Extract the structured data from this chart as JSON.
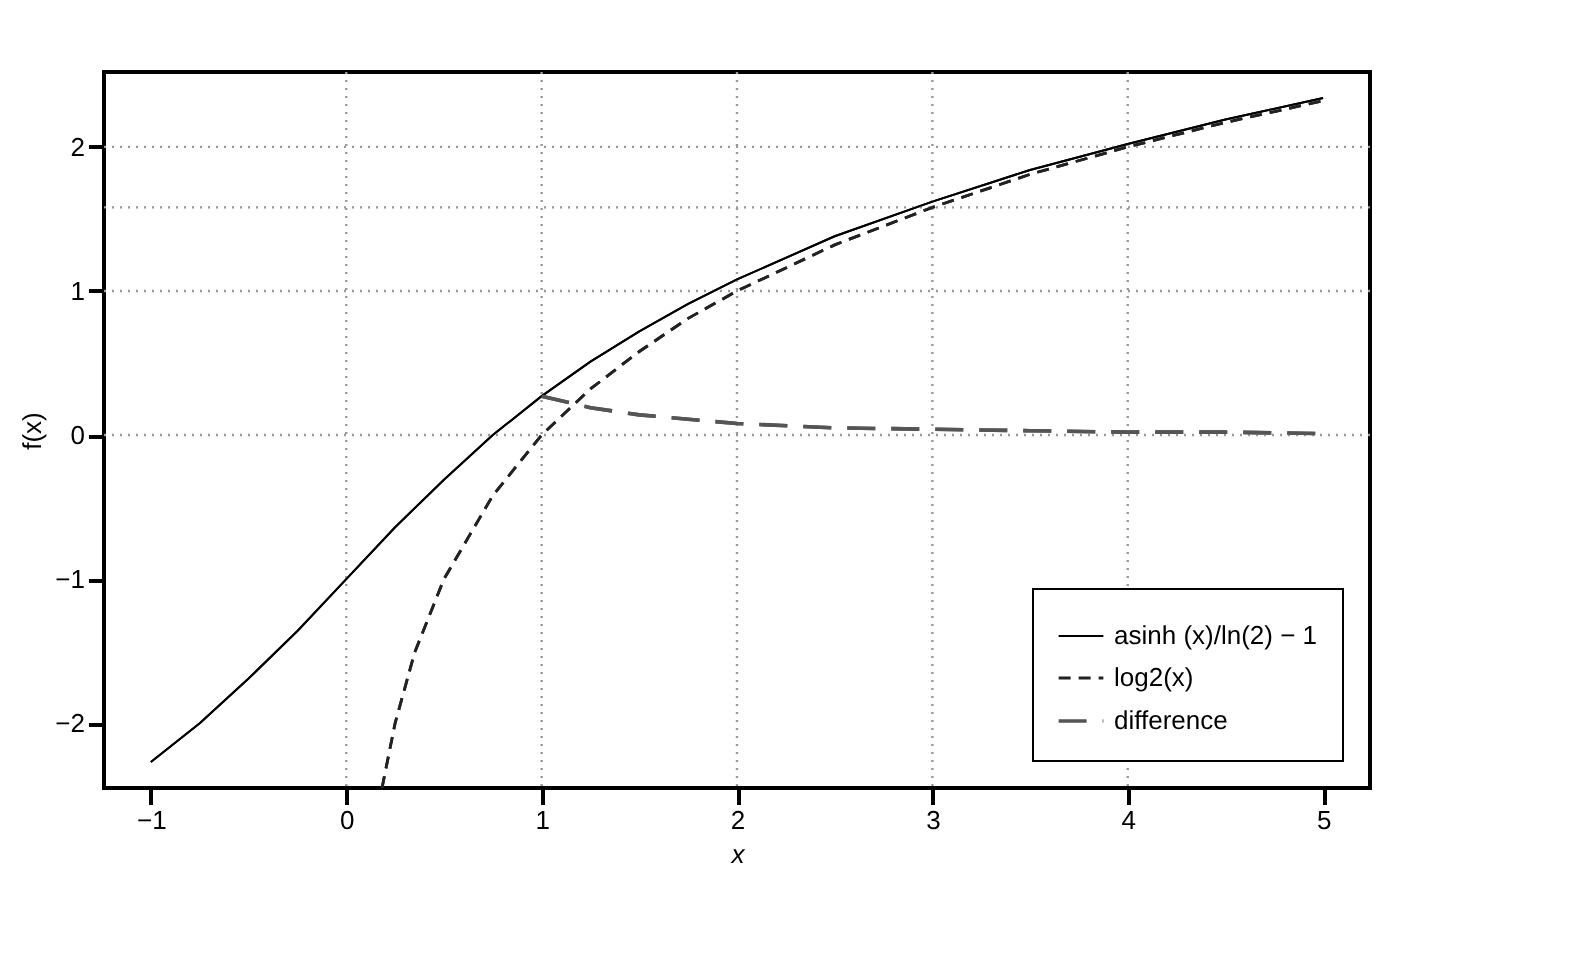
{
  "chart_data": {
    "type": "line",
    "xlabel": "x",
    "ylabel": "f(x)",
    "xlim": [
      -1.24,
      5.24
    ],
    "ylim": [
      -2.45,
      2.52
    ],
    "xticks": [
      -1,
      0,
      1,
      2,
      3,
      4,
      5
    ],
    "yticks": [
      -2,
      -1,
      0,
      1,
      2
    ],
    "grid": false,
    "legend": "bottom right",
    "series": [
      {
        "name": "asinh (x)/ln(2) − 1",
        "color": "#000000",
        "line_style": "solid",
        "x": [
          -1,
          -0.75,
          -0.5,
          -0.25,
          0,
          0.25,
          0.5,
          0.75,
          1,
          1.25,
          1.5,
          1.75,
          2,
          2.5,
          3,
          3.5,
          4,
          4.5,
          5
        ],
        "values": [
          -2.27,
          -2.0,
          -1.69,
          -1.36,
          -1.0,
          -0.64,
          -0.31,
          0.0,
          0.27,
          0.51,
          0.72,
          0.91,
          1.08,
          1.38,
          1.62,
          1.84,
          2.02,
          2.19,
          2.34
        ]
      },
      {
        "name": "log2(x)",
        "color": "#222222",
        "line_style": "dashed",
        "x": [
          0.183,
          0.25,
          0.35,
          0.5,
          0.75,
          1,
          1.25,
          1.5,
          1.75,
          2,
          2.5,
          3,
          3.5,
          4,
          4.5,
          5
        ],
        "values": [
          -2.45,
          -2.0,
          -1.51,
          -1.0,
          -0.42,
          0.0,
          0.32,
          0.58,
          0.81,
          1.0,
          1.32,
          1.58,
          1.81,
          2.0,
          2.17,
          2.32
        ]
      },
      {
        "name": "difference",
        "color": "#555555",
        "line_style": "dashed",
        "x": [
          1,
          1.25,
          1.5,
          1.75,
          2,
          2.5,
          3,
          3.5,
          4,
          4.5,
          5
        ],
        "values": [
          0.27,
          0.19,
          0.14,
          0.11,
          0.08,
          0.05,
          0.04,
          0.03,
          0.02,
          0.02,
          0.01
        ]
      }
    ],
    "ref_lines": [
      {
        "axis": "x",
        "value": 0,
        "color": "#999999",
        "line_style": "dotted"
      },
      {
        "axis": "x",
        "value": 1,
        "color": "#999999",
        "line_style": "dotted"
      },
      {
        "axis": "x",
        "value": 2,
        "color": "#999999",
        "line_style": "dotted"
      },
      {
        "axis": "x",
        "value": 3,
        "color": "#999999",
        "line_style": "dotted"
      },
      {
        "axis": "x",
        "value": 4,
        "color": "#999999",
        "line_style": "dotted"
      },
      {
        "axis": "y",
        "value": 0,
        "color": "#999999",
        "line_style": "dotted"
      },
      {
        "axis": "y",
        "value": 1,
        "color": "#999999",
        "line_style": "dotted"
      },
      {
        "axis": "y",
        "value": 1.58,
        "color": "#999999",
        "line_style": "dotted"
      },
      {
        "axis": "y",
        "value": 2,
        "color": "#999999",
        "line_style": "dotted"
      }
    ]
  }
}
